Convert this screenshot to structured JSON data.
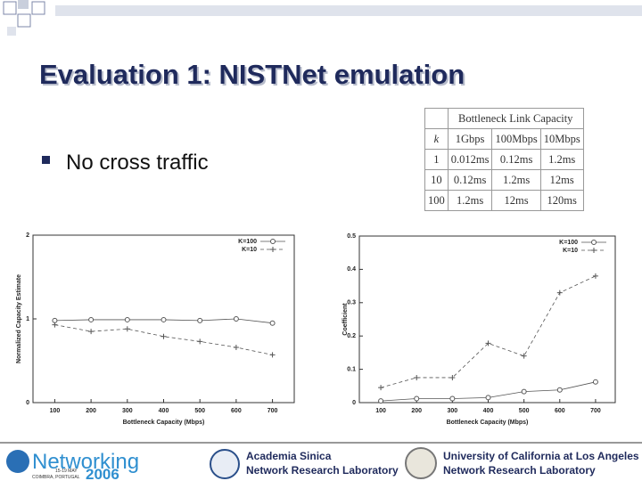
{
  "title": "Evaluation 1: NISTNet emulation",
  "bullets": [
    "No cross traffic"
  ],
  "table": {
    "header": "Bottleneck Link Capacity",
    "columns": [
      "k",
      "1Gbps",
      "100Mbps",
      "10Mbps"
    ],
    "rows": [
      [
        "1",
        "0.012ms",
        "0.12ms",
        "1.2ms"
      ],
      [
        "10",
        "0.12ms",
        "1.2ms",
        "12ms"
      ],
      [
        "100",
        "1.2ms",
        "12ms",
        "120ms"
      ]
    ]
  },
  "footer": {
    "conference": "Networking",
    "year": "2006",
    "dates": "15-19 MAY",
    "place": "COIMBRA, PORTUGAL",
    "left_org": [
      "Academia Sinica",
      "Network Research Laboratory"
    ],
    "right_org": [
      "University of California at Los Angeles",
      "Network Research Laboratory"
    ]
  },
  "chart_data": [
    {
      "type": "line",
      "xlabel": "Bottleneck Capacity (Mbps)",
      "ylabel": "Normalized Capacity Estimate",
      "x": [
        100,
        200,
        300,
        400,
        500,
        600,
        700
      ],
      "xlim": [
        40,
        760
      ],
      "xticks": [
        100,
        200,
        300,
        400,
        500,
        600,
        700
      ],
      "ylim": [
        0,
        2
      ],
      "yticks": [
        0,
        1,
        2
      ],
      "legend": "upper right",
      "series": [
        {
          "name": "K=100",
          "color": "#555555",
          "marker": "circle",
          "dash": false,
          "values": [
            0.98,
            0.99,
            0.99,
            0.99,
            0.98,
            1.0,
            0.95
          ]
        },
        {
          "name": "K=10",
          "color": "#555555",
          "marker": "plus",
          "dash": true,
          "values": [
            0.93,
            0.85,
            0.88,
            0.79,
            0.73,
            0.66,
            0.57
          ]
        }
      ]
    },
    {
      "type": "line",
      "xlabel": "Bottleneck Capacity (Mbps)",
      "ylabel": "Coefficient",
      "x": [
        100,
        200,
        300,
        400,
        500,
        600,
        700
      ],
      "xlim": [
        40,
        755
      ],
      "xticks": [
        100,
        200,
        300,
        400,
        500,
        600,
        700
      ],
      "ylim": [
        0,
        0.5
      ],
      "yticks": [
        0,
        0.1,
        0.2,
        0.3,
        0.4,
        0.5
      ],
      "legend": "upper right",
      "series": [
        {
          "name": "K=100",
          "color": "#555555",
          "marker": "circle",
          "dash": false,
          "values": [
            0.005,
            0.012,
            0.012,
            0.015,
            0.033,
            0.038,
            0.062
          ]
        },
        {
          "name": "K=10",
          "color": "#555555",
          "marker": "plus",
          "dash": true,
          "values": [
            0.045,
            0.075,
            0.075,
            0.178,
            0.14,
            0.33,
            0.38
          ]
        }
      ]
    }
  ]
}
